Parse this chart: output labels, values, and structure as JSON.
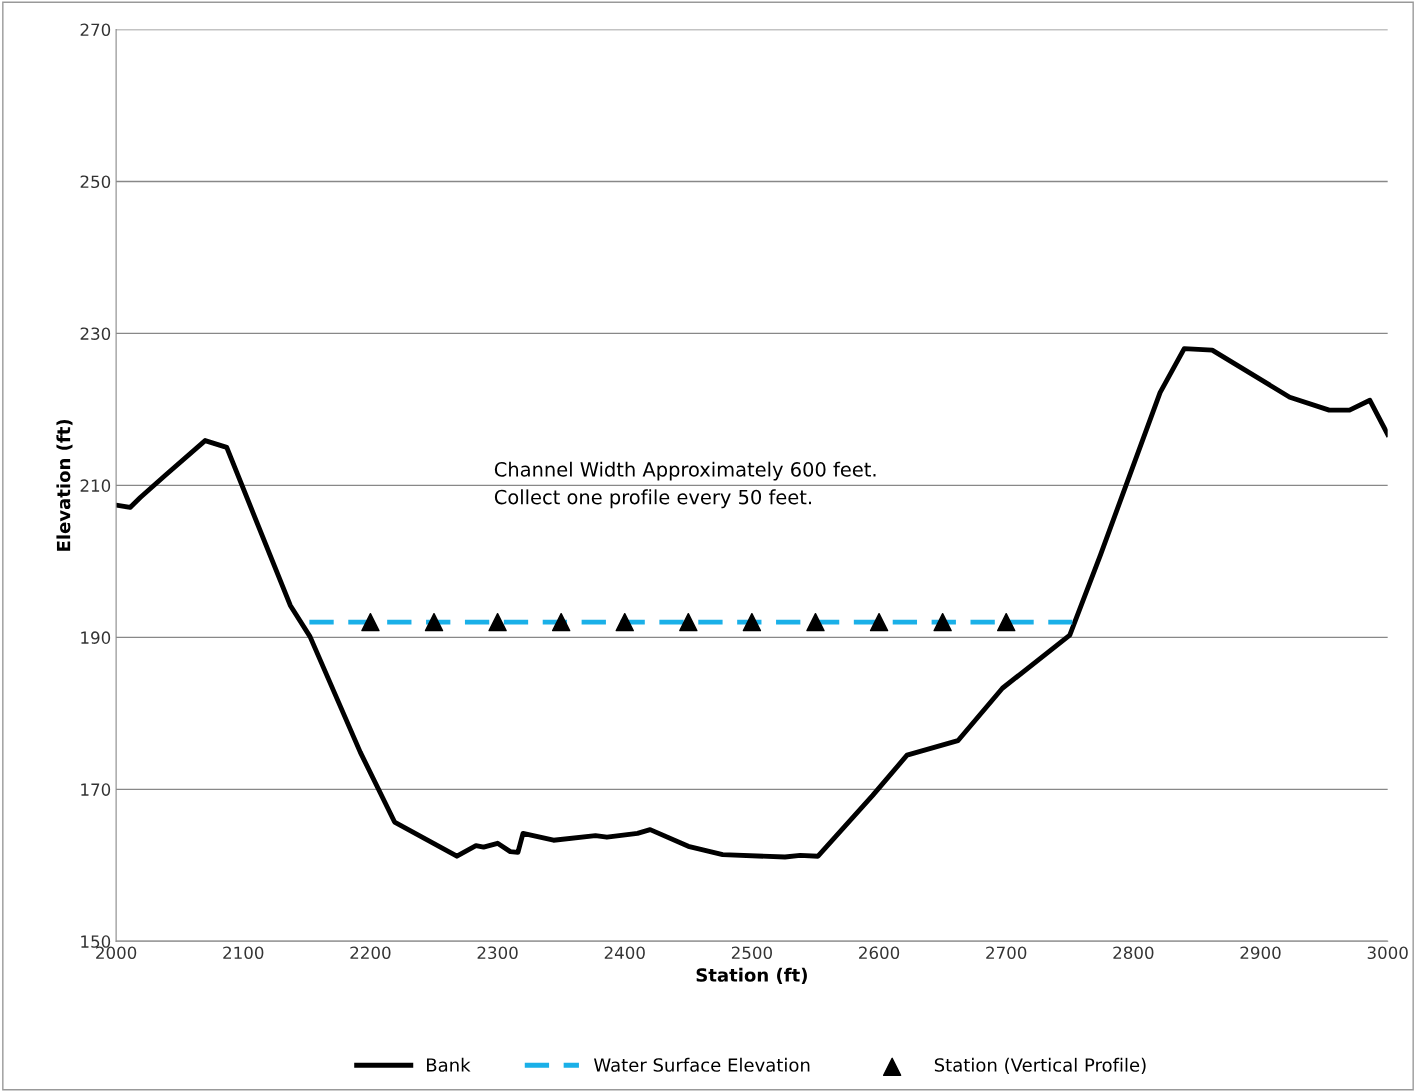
{
  "chart_data": {
    "type": "line",
    "xlabel": "Station (ft)",
    "ylabel": "Elevation (ft)",
    "xlim": [
      2000,
      3000
    ],
    "xticks": [
      2000,
      2100,
      2200,
      2300,
      2400,
      2500,
      2600,
      2700,
      2800,
      2900,
      3000
    ],
    "ylim": [
      150,
      270
    ],
    "yticks": [
      150,
      170,
      190,
      210,
      230,
      250,
      270
    ],
    "grid": "y",
    "legend": "bottom",
    "annotations": [
      "Channel Width Approximately 600 feet.\nCollect one profile every 50 feet."
    ],
    "series": [
      {
        "name": "Bank",
        "color": "#000000",
        "line_style": "solid",
        "marker": "none",
        "x": [
          2000,
          2011,
          2019,
          2038.5,
          2070,
          2087,
          2137,
          2152.5,
          2192,
          2219,
          2268,
          2283,
          2289,
          2300,
          2310,
          2316,
          2320,
          2344,
          2377,
          2386,
          2410,
          2420,
          2450,
          2477,
          2526,
          2538,
          2552,
          2595,
          2622,
          2662,
          2697,
          2750,
          2774,
          2821,
          2840,
          2862,
          2923,
          2954,
          2970,
          2986,
          3000
        ],
        "values": [
          207.4,
          207.1,
          208.4,
          211.3,
          215.9,
          215,
          194.2,
          190.1,
          174.9,
          165.7,
          161.2,
          162.6,
          162.4,
          162.9,
          161.8,
          161.7,
          164.2,
          163.3,
          163.9,
          163.7,
          164.2,
          164.7,
          162.5,
          161.4,
          161.1,
          161.3,
          161.2,
          169.2,
          174.5,
          176.4,
          183.3,
          190.3,
          200.8,
          222.2,
          228,
          227.8,
          221.6,
          219.9,
          219.9,
          221.2,
          216.7
        ]
      },
      {
        "name": "Water Surface Elevation",
        "color": "#1ab0e8",
        "line_style": "dashed",
        "marker": "none",
        "x": [
          2152,
          2752
        ],
        "values": [
          192,
          192
        ]
      },
      {
        "name": "Station (Vertical Profile)",
        "type": "scatter",
        "color": "#000000",
        "marker": "triangle",
        "x": [
          2200,
          2250,
          2300,
          2350,
          2400,
          2450,
          2500,
          2550,
          2600,
          2650,
          2700
        ],
        "values": [
          192,
          192,
          192,
          192,
          192,
          192,
          192,
          192,
          192,
          192,
          192
        ]
      }
    ]
  }
}
